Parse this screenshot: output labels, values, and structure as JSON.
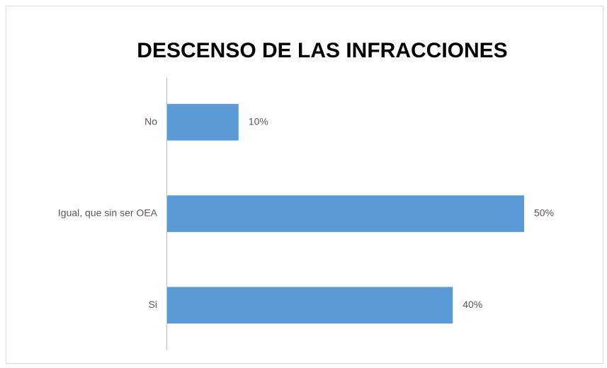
{
  "chart_data": {
    "type": "hbar",
    "title": "DESCENSO DE LAS INFRACCIONES",
    "categories": [
      "No",
      "Igual,  que sin ser OEA",
      "Si"
    ],
    "values": [
      10,
      50,
      40
    ],
    "value_labels": [
      "10%",
      "50%",
      "40%"
    ],
    "color": "#5b9bd5"
  }
}
